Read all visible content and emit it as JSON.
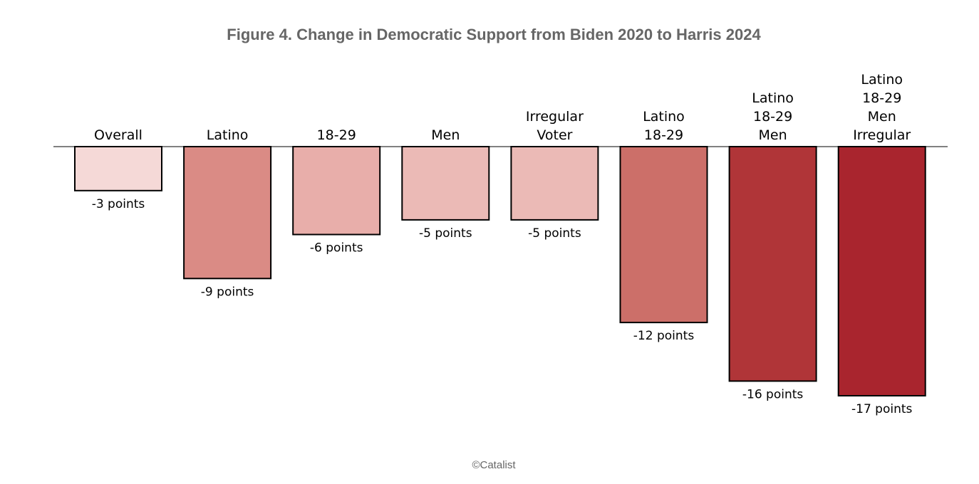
{
  "chart_data": {
    "type": "bar",
    "title": "Figure 4. Change in Democratic Support from Biden 2020 to Harris 2024",
    "categories": [
      [
        "Overall"
      ],
      [
        "Latino"
      ],
      [
        "18-29"
      ],
      [
        "Men"
      ],
      [
        "Irregular",
        "Voter"
      ],
      [
        "Latino",
        "18-29"
      ],
      [
        "Latino",
        "18-29",
        "Men"
      ],
      [
        "Latino",
        "18-29",
        "Men",
        "Irregular"
      ]
    ],
    "values": [
      -3,
      -9,
      -6,
      -5,
      -5,
      -12,
      -16,
      -17
    ],
    "value_labels": [
      "-3 points",
      "-9 points",
      "-6 points",
      "-5 points",
      "-5 points",
      "-12 points",
      "-16 points",
      "-17 points"
    ],
    "colors": [
      "#f5d9d7",
      "#da8b85",
      "#e8aeaa",
      "#ebbab6",
      "#ebbab6",
      "#cc6f69",
      "#b03538",
      "#a9252e"
    ],
    "xlabel": "",
    "ylabel": "",
    "ylim": [
      -17,
      0
    ],
    "grid": false,
    "legend": "none"
  },
  "credit": "©Catalist"
}
